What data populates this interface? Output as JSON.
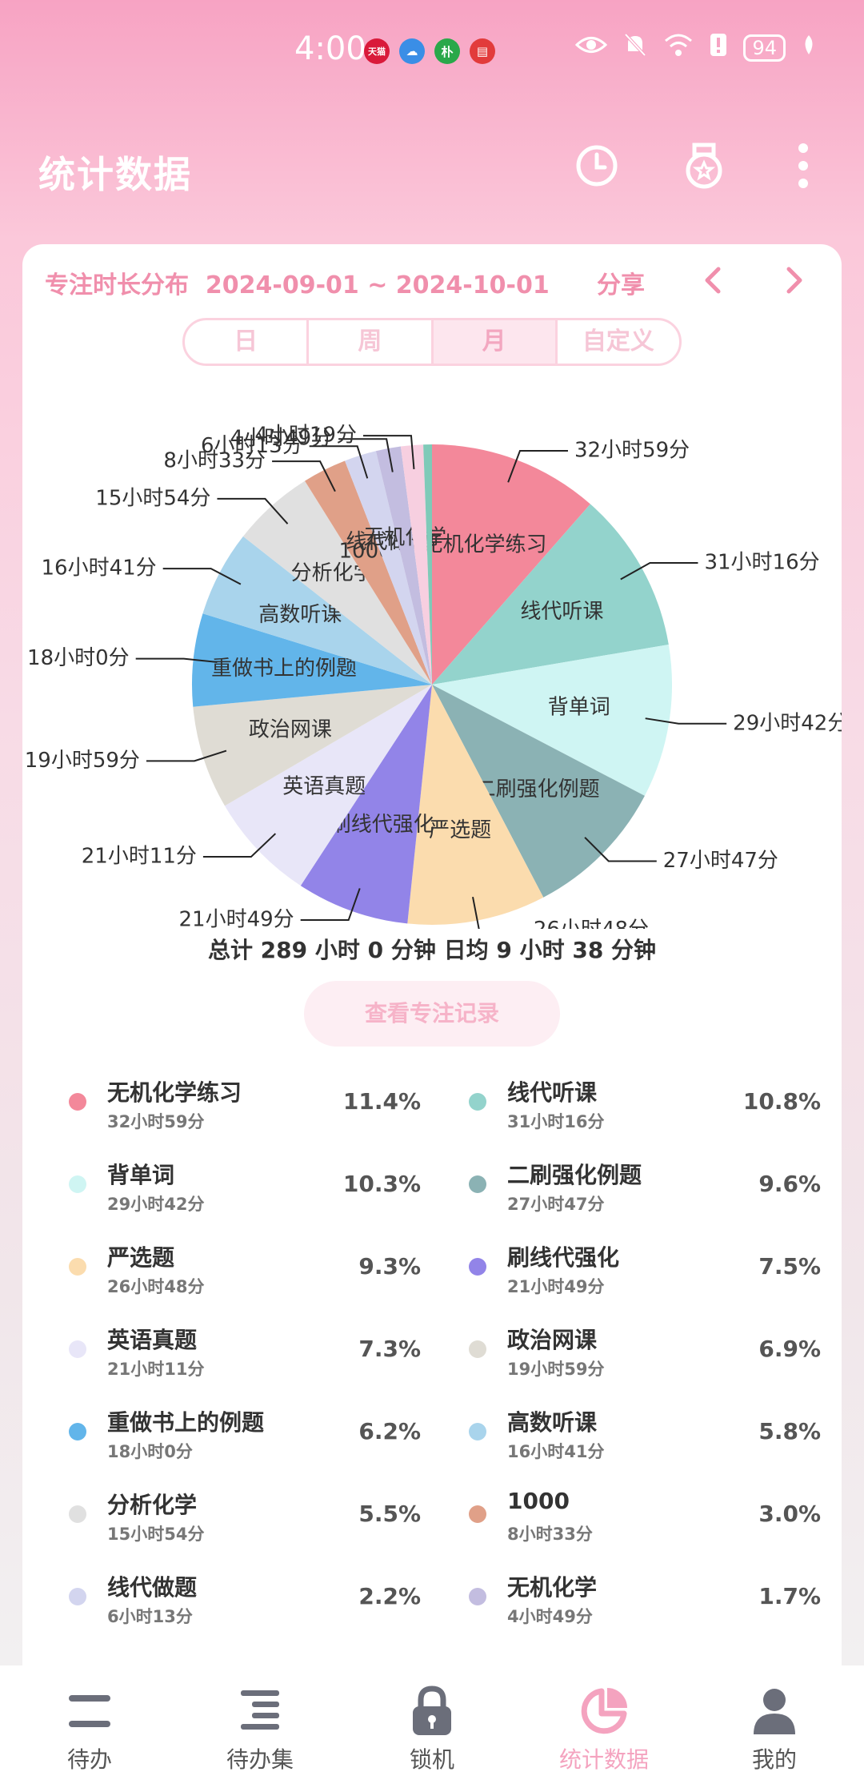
{
  "status_bar": {
    "time": "4:00",
    "apps": [
      {
        "name": "tmall-icon",
        "label": "天猫",
        "color": "#d91a3a"
      },
      {
        "name": "cloud-icon",
        "label": "☁",
        "color": "#3a8ee6"
      },
      {
        "name": "pu-icon",
        "label": "朴",
        "color": "#2aa84a"
      },
      {
        "name": "book-icon",
        "label": "▤",
        "color": "#e23b3b"
      }
    ],
    "battery": "94"
  },
  "header": {
    "title": "统计数据"
  },
  "card": {
    "title": "专注时长分布",
    "date_range": "2024-09-01 ~ 2024-10-01",
    "share": "分享"
  },
  "segments": [
    {
      "label": "日",
      "active": false
    },
    {
      "label": "周",
      "active": false
    },
    {
      "label": "月",
      "active": true
    },
    {
      "label": "自定义",
      "active": false
    }
  ],
  "summary": "总计 289 小时 0 分钟 日均 9 小时 38 分钟",
  "view_button": "查看专注记录",
  "chart_data": {
    "type": "pie",
    "unit": "minutes",
    "slices": [
      {
        "label": "无机化学练习",
        "value_text": "32小时59分",
        "minutes": 1979,
        "percent": "11.4%",
        "color": "#f3889a"
      },
      {
        "label": "线代听课",
        "value_text": "31小时16分",
        "minutes": 1876,
        "percent": "10.8%",
        "color": "#93d3cc"
      },
      {
        "label": "背单词",
        "value_text": "29小时42分",
        "minutes": 1782,
        "percent": "10.3%",
        "color": "#cff5f3"
      },
      {
        "label": "二刷强化例题",
        "value_text": "27小时47分",
        "minutes": 1667,
        "percent": "9.6%",
        "color": "#8bb2b4"
      },
      {
        "label": "严选题",
        "value_text": "26小时48分",
        "minutes": 1608,
        "percent": "9.3%",
        "color": "#fbdcae"
      },
      {
        "label": "刷线代强化",
        "value_text": "21小时49分",
        "minutes": 1309,
        "percent": "7.5%",
        "color": "#9284e8"
      },
      {
        "label": "英语真题",
        "value_text": "21小时11分",
        "minutes": 1271,
        "percent": "7.3%",
        "color": "#e8e6f8"
      },
      {
        "label": "政治网课",
        "value_text": "19小时59分",
        "minutes": 1199,
        "percent": "6.9%",
        "color": "#dfdcd4"
      },
      {
        "label": "重做书上的例题",
        "value_text": "18小时0分",
        "minutes": 1080,
        "percent": "6.2%",
        "color": "#62b5ea"
      },
      {
        "label": "高数听课",
        "value_text": "16小时41分",
        "minutes": 1001,
        "percent": "5.8%",
        "color": "#a9d4ec"
      },
      {
        "label": "分析化学",
        "value_text": "15小时54分",
        "minutes": 954,
        "percent": "5.5%",
        "color": "#e0e0e0"
      },
      {
        "label": "1000",
        "value_text": "8小时33分",
        "minutes": 513,
        "percent": "3.0%",
        "color": "#e0a088"
      },
      {
        "label": "线代做题",
        "value_text": "6小时13分",
        "minutes": 373,
        "percent": "2.2%",
        "color": "#d3d5ef"
      },
      {
        "label": "无机化学",
        "value_text": "4小时49分",
        "minutes": 289,
        "percent": "1.7%",
        "color": "#c3bde0"
      },
      {
        "label": "",
        "value_text": "4小时19分",
        "minutes": 259,
        "percent": "",
        "color": "#f7cfe0"
      },
      {
        "label": "",
        "value_text": "",
        "minutes": 100,
        "percent": "",
        "color": "#7fcab8"
      }
    ]
  },
  "legend": [
    {
      "name": "无机化学练习",
      "time": "32小时59分",
      "pct": "11.4%",
      "color": "#f3889a"
    },
    {
      "name": "线代听课",
      "time": "31小时16分",
      "pct": "10.8%",
      "color": "#93d3cc"
    },
    {
      "name": "背单词",
      "time": "29小时42分",
      "pct": "10.3%",
      "color": "#cff5f3"
    },
    {
      "name": "二刷强化例题",
      "time": "27小时47分",
      "pct": "9.6%",
      "color": "#8bb2b4"
    },
    {
      "name": "严选题",
      "time": "26小时48分",
      "pct": "9.3%",
      "color": "#fbdcae"
    },
    {
      "name": "刷线代强化",
      "time": "21小时49分",
      "pct": "7.5%",
      "color": "#9284e8"
    },
    {
      "name": "英语真题",
      "time": "21小时11分",
      "pct": "7.3%",
      "color": "#e8e6f8"
    },
    {
      "name": "政治网课",
      "time": "19小时59分",
      "pct": "6.9%",
      "color": "#dfdcd4"
    },
    {
      "name": "重做书上的例题",
      "time": "18小时0分",
      "pct": "6.2%",
      "color": "#62b5ea"
    },
    {
      "name": "高数听课",
      "time": "16小时41分",
      "pct": "5.8%",
      "color": "#a9d4ec"
    },
    {
      "name": "分析化学",
      "time": "15小时54分",
      "pct": "5.5%",
      "color": "#e0e0e0"
    },
    {
      "name": "1000",
      "time": "8小时33分",
      "pct": "3.0%",
      "color": "#e0a088"
    },
    {
      "name": "线代做题",
      "time": "6小时13分",
      "pct": "2.2%",
      "color": "#d3d5ef"
    },
    {
      "name": "无机化学",
      "time": "4小时49分",
      "pct": "1.7%",
      "color": "#c3bde0"
    }
  ],
  "bottom_nav": [
    {
      "label": "待办",
      "icon": "todo-icon",
      "active": false
    },
    {
      "label": "待办集",
      "icon": "todo-set-icon",
      "active": false
    },
    {
      "label": "锁机",
      "icon": "lock-icon",
      "active": false
    },
    {
      "label": "统计数据",
      "icon": "pie-chart-icon",
      "active": true
    },
    {
      "label": "我的",
      "icon": "profile-icon",
      "active": false
    }
  ]
}
